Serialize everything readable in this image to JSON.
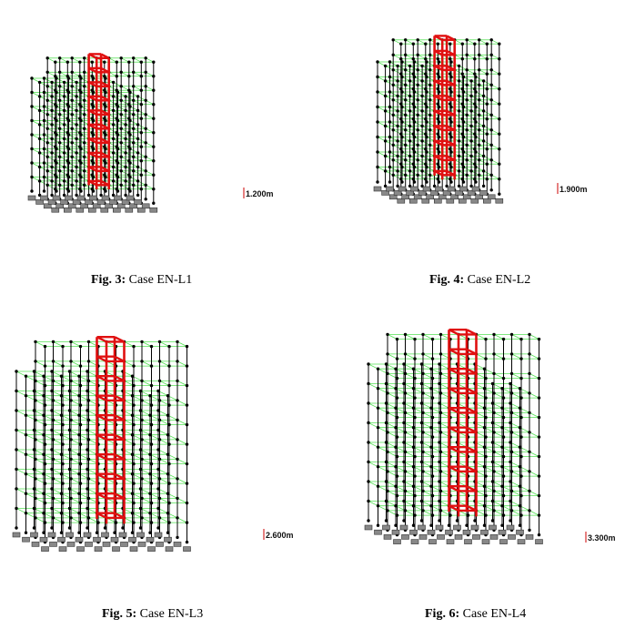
{
  "figures": [
    {
      "fig_label": "Fig. 3:",
      "caption": "Case EN-L1",
      "displacement": "1.200m"
    },
    {
      "fig_label": "Fig. 4:",
      "caption": "Case EN-L2",
      "displacement": "1.900m"
    },
    {
      "fig_label": "Fig. 5:",
      "caption": "Case EN-L3",
      "displacement": "2.600m"
    },
    {
      "fig_label": "Fig. 6:",
      "caption": "Case EN-L4",
      "displacement": "3.300m"
    }
  ],
  "colors": {
    "frame_line": "#000000",
    "grid_line": "#55e055",
    "failed_member": "#e01010",
    "support": "#888888",
    "marker": "#cc0000"
  }
}
